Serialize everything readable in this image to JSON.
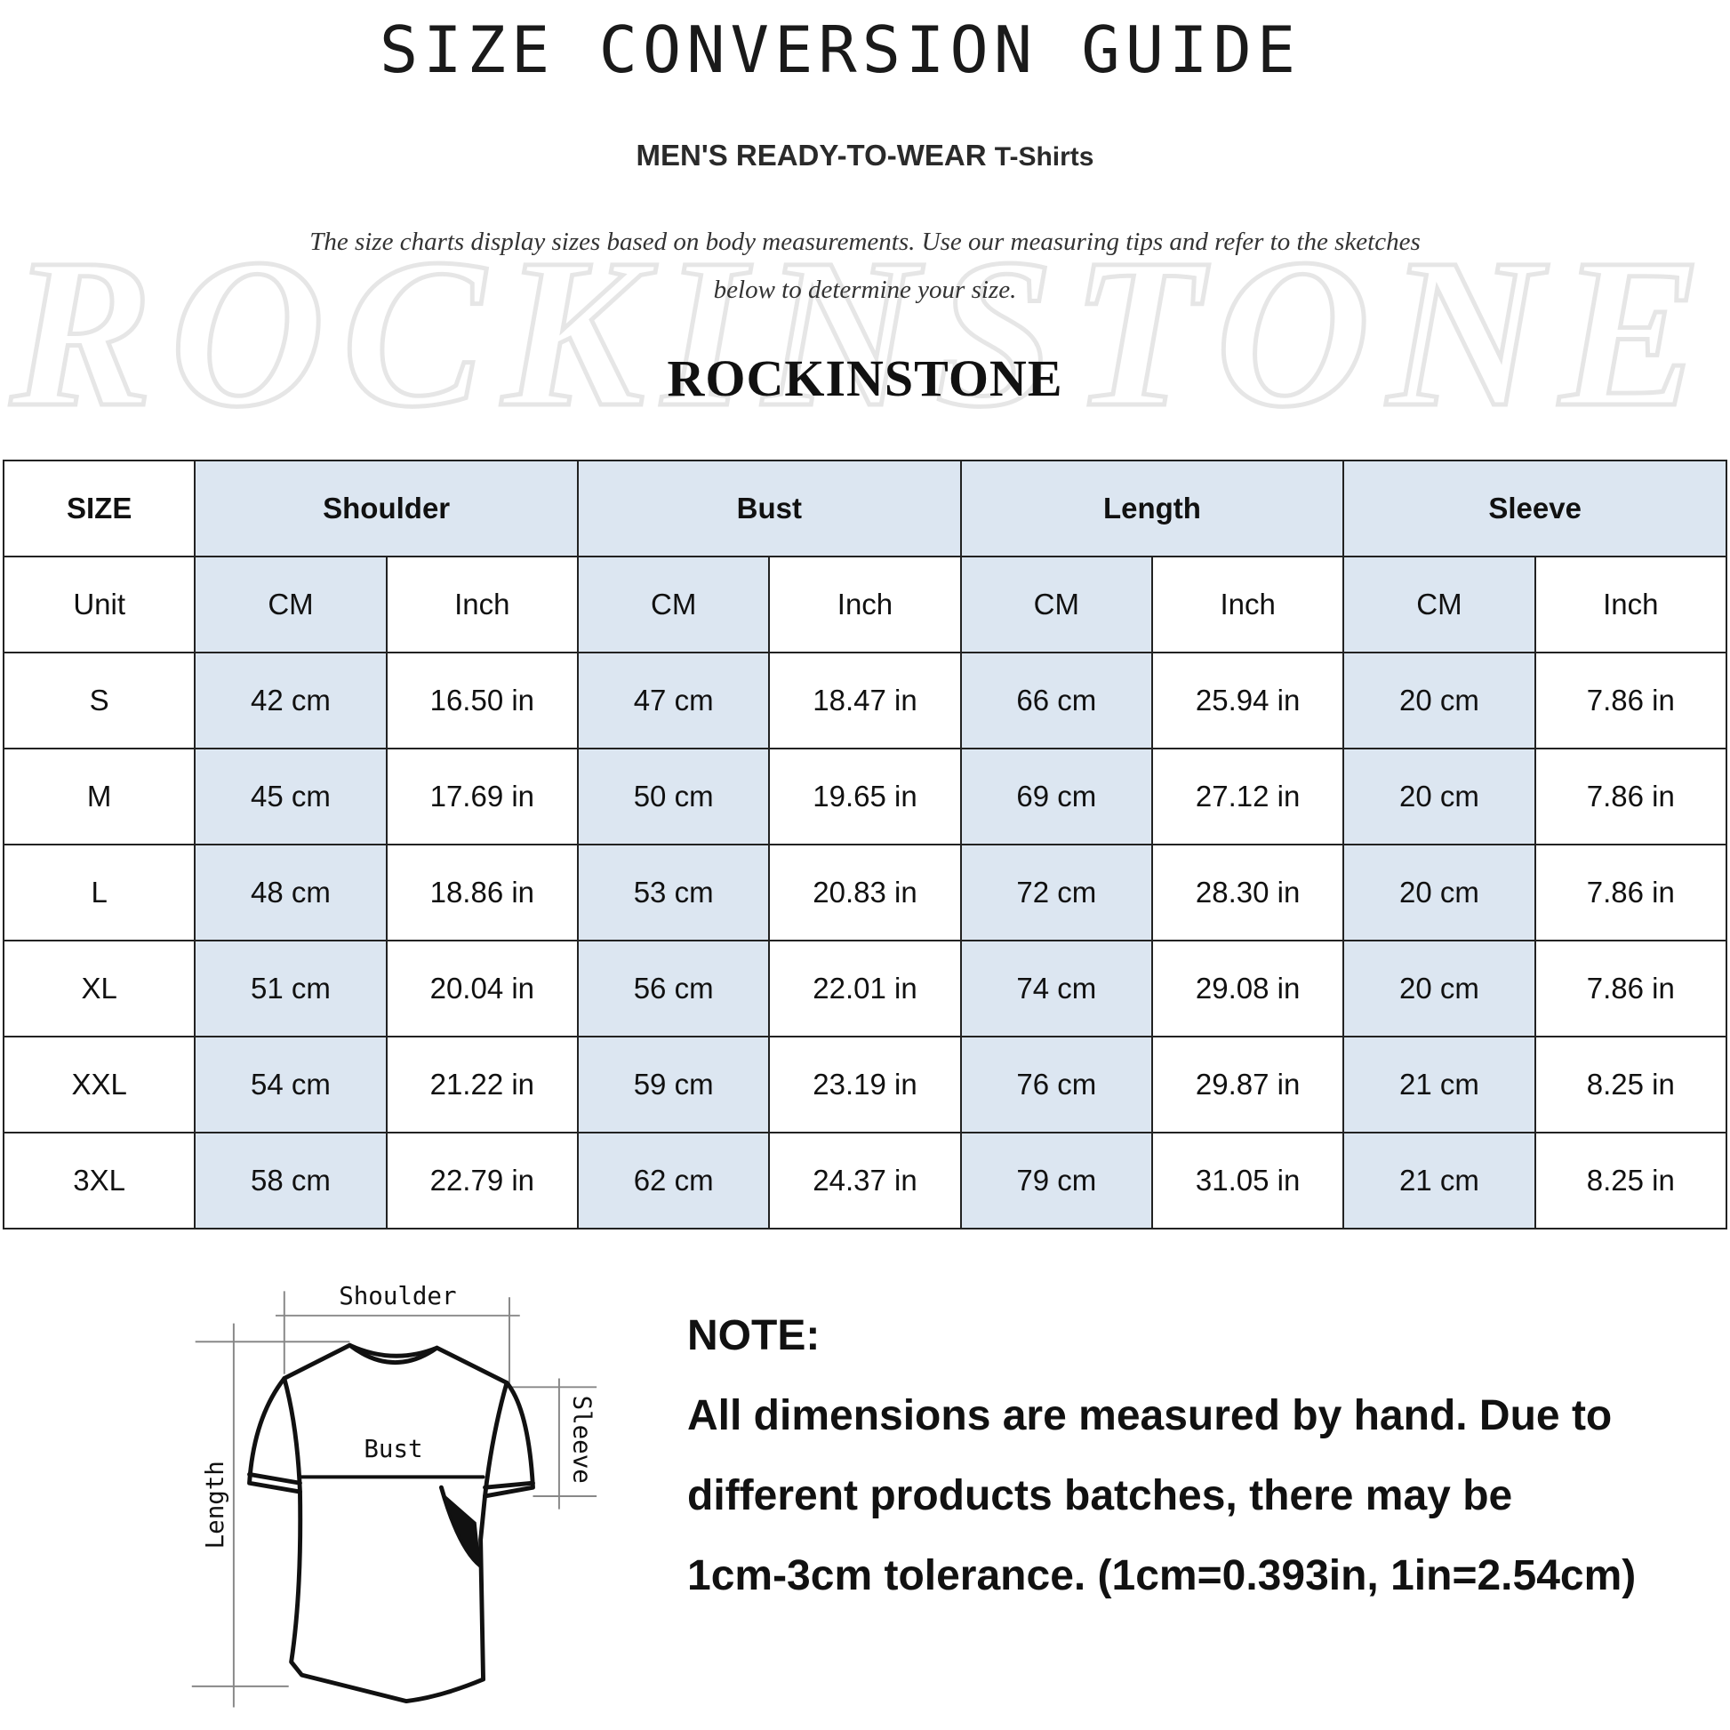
{
  "header": {
    "title": "SIZE CONVERSION GUIDE",
    "subtitle_main": "MEN'S READY-TO-WEAR",
    "subtitle_product": "T-Shirts",
    "description_line1": "The size charts display sizes based on body measurements. Use our measuring tips and refer to the sketches",
    "description_line2": "below to determine your size.",
    "brand": "ROCKINSTONE",
    "watermark": "ROCKINSTONE"
  },
  "table": {
    "size_label": "SIZE",
    "unit_label": "Unit",
    "groups": [
      "Shoulder",
      "Bust",
      "Length",
      "Sleeve"
    ],
    "units": [
      "CM",
      "Inch",
      "CM",
      "Inch",
      "CM",
      "Inch",
      "CM",
      "Inch"
    ],
    "rows": [
      {
        "size": "S",
        "cells": [
          "42 cm",
          "16.50 in",
          "47 cm",
          "18.47  in",
          "66 cm",
          "25.94  in",
          "20 cm",
          "7.86  in"
        ]
      },
      {
        "size": "M",
        "cells": [
          "45 cm",
          "17.69  in",
          "50 cm",
          "19.65  in",
          "69 cm",
          "27.12  in",
          "20 cm",
          "7.86  in"
        ]
      },
      {
        "size": "L",
        "cells": [
          "48 cm",
          "18.86  in",
          "53 cm",
          "20.83  in",
          "72 cm",
          "28.30  in",
          "20 cm",
          "7.86  in"
        ]
      },
      {
        "size": "XL",
        "cells": [
          "51 cm",
          "20.04  in",
          "56 cm",
          "22.01  in",
          "74 cm",
          "29.08  in",
          "20 cm",
          "7.86  in"
        ]
      },
      {
        "size": "XXL",
        "cells": [
          "54 cm",
          "21.22  in",
          "59 cm",
          "23.19  in",
          "76 cm",
          "29.87  in",
          "21 cm",
          "8.25  in"
        ]
      },
      {
        "size": "3XL",
        "cells": [
          "58 cm",
          "22.79  in",
          "62 cm",
          "24.37  in",
          "79 cm",
          "31.05  in",
          "21 cm",
          "8.25  in"
        ]
      }
    ],
    "highlight_color": "#dce6f1"
  },
  "diagram": {
    "shoulder": "Shoulder",
    "bust": "Bust",
    "length": "Length",
    "sleeve": "Sleeve"
  },
  "note": {
    "heading": "NOTE:",
    "line1": "All dimensions are measured by hand. Due to",
    "line2": "different products batches, there may be",
    "line3": "1cm-3cm tolerance. (1cm=0.393in, 1in=2.54cm)"
  }
}
